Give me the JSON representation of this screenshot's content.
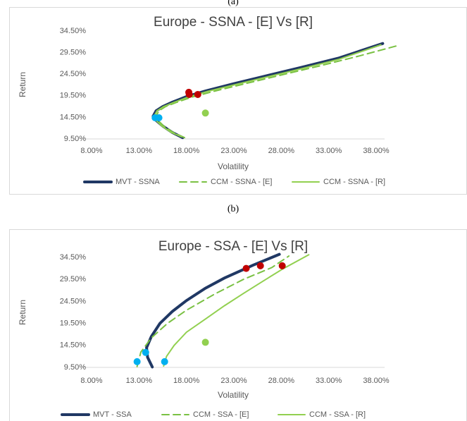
{
  "chart_data": [
    {
      "type": "line",
      "panel_label": "(a)",
      "title": "Europe - SSNA - [E] Vs [R]",
      "xlabel": "Volatility",
      "ylabel": "Return",
      "xlim": [
        8,
        38
      ],
      "ylim": [
        9.5,
        34.5
      ],
      "xticks": [
        {
          "value": 8,
          "label": "8.00%"
        },
        {
          "value": 13,
          "label": "13.00%"
        },
        {
          "value": 18,
          "label": "18.00%"
        },
        {
          "value": 23,
          "label": "23.00%"
        },
        {
          "value": 28,
          "label": "28.00%"
        },
        {
          "value": 33,
          "label": "33.00%"
        },
        {
          "value": 38,
          "label": "38.00%"
        }
      ],
      "yticks": [
        {
          "value": 9.5,
          "label": "9.50%"
        },
        {
          "value": 14.5,
          "label": "14.50%"
        },
        {
          "value": 19.5,
          "label": "19.50%"
        },
        {
          "value": 24.5,
          "label": "24.50%"
        },
        {
          "value": 29.5,
          "label": "29.50%"
        },
        {
          "value": 34.5,
          "label": "34.50%"
        }
      ],
      "series": [
        {
          "name": "MVT - SSNA",
          "color": "#203864",
          "dashed": false,
          "x": [
            17.6,
            16.5,
            15.5,
            14.8,
            14.5,
            14.8,
            15.5,
            16.5,
            18,
            20,
            23,
            26,
            30,
            34,
            38.7
          ],
          "values": [
            9.8,
            11,
            12.5,
            13.8,
            14.8,
            16,
            17,
            18,
            19.3,
            20.6,
            22.3,
            23.9,
            26,
            28.2,
            31.6
          ]
        },
        {
          "name": "CCM - SSNA - [E]",
          "color": "#7ac143",
          "dashed": true,
          "x": [
            17.8,
            16.6,
            15.6,
            15,
            14.8,
            15.1,
            15.8,
            17,
            18.6,
            21,
            24,
            28,
            32,
            36,
            40.4
          ],
          "values": [
            9.8,
            11,
            12.5,
            13.8,
            14.8,
            16,
            17,
            18,
            19.2,
            20.6,
            22.2,
            24.3,
            26.4,
            28.6,
            31.2
          ]
        },
        {
          "name": "CCM - SSNA - [R]",
          "color": "#92d050",
          "dashed": false,
          "x": [
            17.5,
            16.4,
            15.4,
            14.8,
            14.6,
            14.9,
            15.6,
            16.7,
            18.2,
            20.2,
            23,
            26,
            30,
            34,
            38.5
          ],
          "values": [
            10,
            11,
            12.5,
            13.8,
            14.8,
            16,
            17,
            18,
            19.2,
            20.5,
            22,
            23.6,
            25.7,
            27.9,
            31.3
          ]
        }
      ],
      "markers": [
        {
          "color": "#c00000",
          "x": [
            18.25,
            18.3,
            19.2
          ],
          "values": [
            20.3,
            19.8,
            19.8
          ]
        },
        {
          "color": "#00b0f0",
          "x": [
            14.7,
            15.1
          ],
          "values": [
            14.4,
            14.4
          ]
        },
        {
          "color": "#92d050",
          "x": [
            20.0
          ],
          "values": [
            15.5
          ]
        }
      ]
    },
    {
      "type": "line",
      "panel_label": "(b)",
      "title": "Europe - SSA - [E] Vs [R]",
      "xlabel": "Volatility",
      "ylabel": "Return",
      "xlim": [
        8,
        38
      ],
      "ylim": [
        9.5,
        34.5
      ],
      "xticks": [
        {
          "value": 8,
          "label": "8.00%"
        },
        {
          "value": 13,
          "label": "13.00%"
        },
        {
          "value": 18,
          "label": "18.00%"
        },
        {
          "value": 23,
          "label": "23.00%"
        },
        {
          "value": 28,
          "label": "28.00%"
        },
        {
          "value": 33,
          "label": "33.00%"
        },
        {
          "value": 38,
          "label": "38.00%"
        }
      ],
      "yticks": [
        {
          "value": 9.5,
          "label": "9.50%"
        },
        {
          "value": 14.5,
          "label": "14.50%"
        },
        {
          "value": 19.5,
          "label": "19.50%"
        },
        {
          "value": 24.5,
          "label": "24.50%"
        },
        {
          "value": 29.5,
          "label": "29.50%"
        },
        {
          "value": 34.5,
          "label": "34.50%"
        }
      ],
      "series": [
        {
          "name": "MVT - SSA",
          "color": "#203864",
          "dashed": false,
          "x": [
            14.4,
            13.9,
            13.8,
            14.3,
            15.2,
            16.5,
            18,
            20,
            22,
            25,
            27.8
          ],
          "values": [
            9.6,
            11.8,
            14,
            16.5,
            19.5,
            22.2,
            24.7,
            27.5,
            29.8,
            32.7,
            35.2
          ]
        },
        {
          "name": "CCM - SSA - [E]",
          "color": "#7ac143",
          "dashed": true,
          "x": [
            12.8,
            13.2,
            14.3,
            16,
            18,
            21,
            24,
            27,
            28.8
          ],
          "values": [
            9.7,
            13,
            16.2,
            19.5,
            22.5,
            26.2,
            29.5,
            32.2,
            34.8
          ]
        },
        {
          "name": "CCM - SSA - [R]",
          "color": "#92d050",
          "dashed": false,
          "x": [
            15.6,
            15.9,
            16.7,
            18,
            20,
            22,
            24,
            26,
            28.1,
            30.9
          ],
          "values": [
            9.8,
            12,
            14.5,
            17.5,
            20.5,
            23.5,
            26.3,
            29,
            31.8,
            35.1
          ]
        }
      ],
      "markers": [
        {
          "color": "#c00000",
          "x": [
            24.3,
            25.8,
            28.1
          ],
          "values": [
            32.0,
            32.6,
            32.6
          ]
        },
        {
          "color": "#00b0f0",
          "x": [
            13.7,
            12.8,
            15.7
          ],
          "values": [
            12.9,
            10.8,
            10.8
          ]
        },
        {
          "color": "#92d050",
          "x": [
            20.0
          ],
          "values": [
            15.2
          ]
        }
      ]
    }
  ]
}
